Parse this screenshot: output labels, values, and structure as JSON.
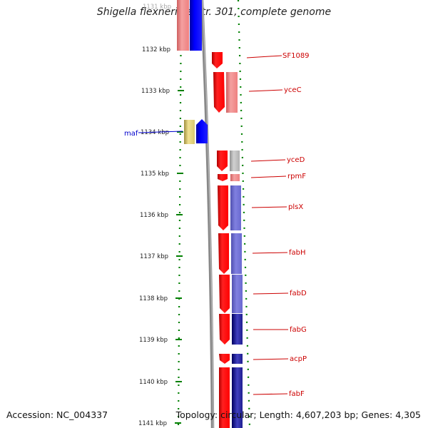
{
  "title": "Shigella flexneri 2a str. 301, complete genome",
  "footer": {
    "accession": "Accession: NC_004337",
    "topology": "Topology: circular; Length: 4,607,203 bp; Genes: 4,305"
  },
  "ruler": {
    "labels": [
      "1131 kbp",
      "1132 kbp",
      "1133 kbp",
      "1134 kbp",
      "1135 kbp",
      "1136 kbp",
      "1137 kbp",
      "1138 kbp",
      "1139 kbp",
      "1140 kbp",
      "1141 kbp"
    ]
  },
  "left_genes": [
    {
      "label": "maf",
      "label_color": "#0000cc"
    }
  ],
  "right_genes": [
    {
      "label": "SF1089"
    },
    {
      "label": "yceC"
    },
    {
      "label": "yceD"
    },
    {
      "label": "rpmF"
    },
    {
      "label": "plsX"
    },
    {
      "label": "fabH"
    },
    {
      "label": "fabD"
    },
    {
      "label": "fabG"
    },
    {
      "label": "acpP"
    },
    {
      "label": "fabF"
    }
  ],
  "colors": {
    "forward_strand": "#ff0000",
    "forward_light": "#f08080",
    "reverse_strand": "#0000ff",
    "reverse_light": "#7070d0",
    "hypothetical": "#e0d080",
    "backbone": "#808080",
    "tick": "#008000",
    "label": "#cc0000"
  }
}
